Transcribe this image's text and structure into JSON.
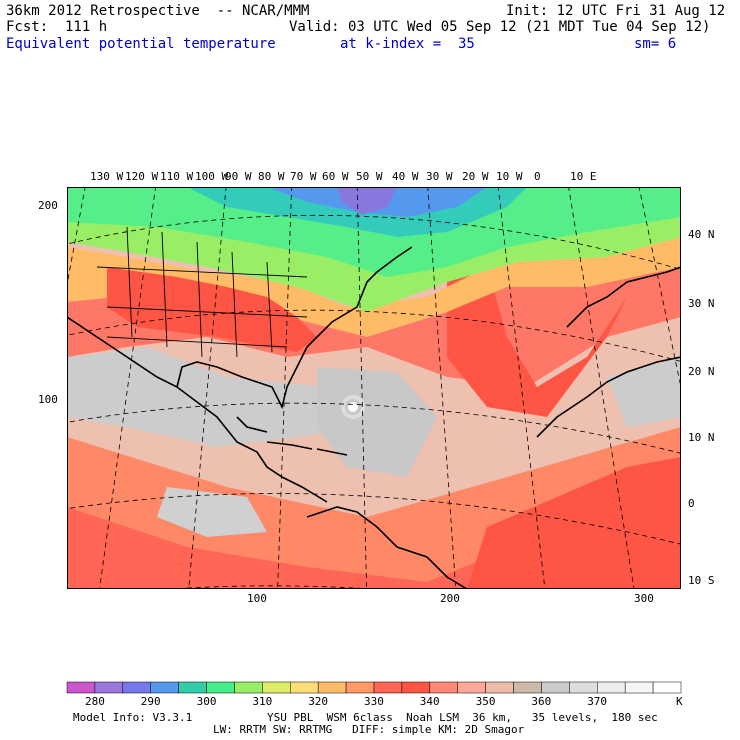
{
  "header": {
    "line1_left": "36km 2012 Retrospective  -- NCAR/MMM",
    "line1_right": "Init: 12 UTC Fri 31 Aug 12",
    "line2_left": "Fcst:  111 h",
    "line2_right": "Valid: 03 UTC Wed 05 Sep 12 (21 MDT Tue 04 Sep 12)",
    "line3_field": "Equivalent potential temperature",
    "line3_level": "at k-index =  35",
    "line3_smooth": "sm= 6"
  },
  "map": {
    "lon_labels": [
      "130 W",
      "120 W",
      "110 W",
      "100 W",
      "90 W",
      "80 W",
      "70 W",
      "60 W",
      "50 W",
      "40 W",
      "30 W",
      "20 W",
      "10 W",
      "0",
      "10 E"
    ],
    "lat_labels": [
      "40 N",
      "30 N",
      "20 N",
      "10 N",
      "0",
      "10 S"
    ],
    "y_grid_labels": [
      "200",
      "100"
    ],
    "x_grid_labels": [
      "100",
      "200",
      "300"
    ]
  },
  "legend": {
    "values": [
      "280",
      "290",
      "300",
      "310",
      "320",
      "330",
      "340",
      "350",
      "360",
      "370"
    ],
    "unit": "K",
    "colors": [
      "#cc55cc",
      "#9977dd",
      "#7777ee",
      "#5599ee",
      "#33ccaa",
      "#44ee88",
      "#99ee66",
      "#ddee66",
      "#ffdd77",
      "#ffbb66",
      "#ff9966",
      "#ff6655",
      "#ff5544",
      "#ff8877",
      "#ffaa99",
      "#eebbaa",
      "#ccbbaa",
      "#cccccc",
      "#dddddd",
      "#eeeeee",
      "#f6f6f6",
      "#ffffff"
    ]
  },
  "footer": {
    "line1_left": "Model Info: V3.3.1",
    "line1_right": "YSU PBL  WSM 6class  Noah LSM  36 km,   35 levels,  180 sec",
    "line2": "LW: RRTM SW: RRTMG   DIFF: simple KM: 2D Smagor"
  }
}
